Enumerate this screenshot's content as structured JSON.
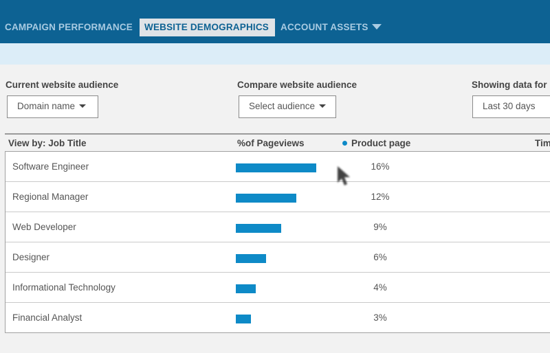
{
  "nav": {
    "items": [
      {
        "label": "CAMPAIGN PERFORMANCE"
      },
      {
        "label": "WEBSITE DEMOGRAPHICS",
        "active": true
      },
      {
        "label": "ACCOUNT ASSETS"
      }
    ]
  },
  "filters": {
    "current": {
      "label": "Current website audience",
      "value": "Domain name"
    },
    "compare": {
      "label": "Compare website audience",
      "value": "Select audience"
    },
    "period": {
      "label": "Showing data for",
      "value": "Last 30 days"
    }
  },
  "table": {
    "view_by": "View by:  Job Title",
    "metric_header": "%of Pageviews",
    "legend": "Product page",
    "extra_header": "Tim",
    "rows": [
      {
        "title": "Software Engineer",
        "pct": "16%",
        "value": 16
      },
      {
        "title": "Regional Manager",
        "pct": "12%",
        "value": 12
      },
      {
        "title": "Web Developer",
        "pct": "9%",
        "value": 9
      },
      {
        "title": "Designer",
        "pct": "6%",
        "value": 6
      },
      {
        "title": "Informational Technology",
        "pct": "4%",
        "value": 4
      },
      {
        "title": "Financial Analyst",
        "pct": "3%",
        "value": 3
      }
    ]
  },
  "colors": {
    "topbar": "#0d6293",
    "accent": "#0e8ac7",
    "subbar": "#dcedf8"
  }
}
